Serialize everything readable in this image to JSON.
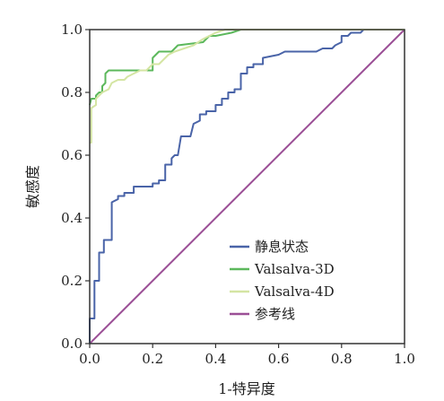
{
  "chart_data": {
    "type": "line",
    "xlabel": "1-特异度",
    "ylabel": "敏感度",
    "xlim": [
      0,
      1
    ],
    "ylim": [
      0,
      1
    ],
    "x_ticks": [
      "0.0",
      "0.2",
      "0.4",
      "0.6",
      "0.8",
      "1.0"
    ],
    "y_ticks": [
      "0.0",
      "0.2",
      "0.4",
      "0.6",
      "0.8",
      "1.0"
    ],
    "legend_position": "bottom-right",
    "grid": false,
    "series": [
      {
        "name": "静息状态",
        "color": "#4a64a8",
        "points": [
          [
            0,
            0
          ],
          [
            0,
            0.08
          ],
          [
            0.015,
            0.08
          ],
          [
            0.015,
            0.2
          ],
          [
            0.03,
            0.2
          ],
          [
            0.03,
            0.29
          ],
          [
            0.045,
            0.29
          ],
          [
            0.045,
            0.33
          ],
          [
            0.07,
            0.33
          ],
          [
            0.07,
            0.45
          ],
          [
            0.09,
            0.46
          ],
          [
            0.09,
            0.47
          ],
          [
            0.11,
            0.47
          ],
          [
            0.11,
            0.48
          ],
          [
            0.14,
            0.48
          ],
          [
            0.14,
            0.5
          ],
          [
            0.2,
            0.5
          ],
          [
            0.2,
            0.51
          ],
          [
            0.22,
            0.51
          ],
          [
            0.22,
            0.52
          ],
          [
            0.24,
            0.52
          ],
          [
            0.24,
            0.57
          ],
          [
            0.26,
            0.57
          ],
          [
            0.26,
            0.59
          ],
          [
            0.27,
            0.6
          ],
          [
            0.28,
            0.6
          ],
          [
            0.29,
            0.66
          ],
          [
            0.32,
            0.66
          ],
          [
            0.33,
            0.7
          ],
          [
            0.35,
            0.71
          ],
          [
            0.35,
            0.73
          ],
          [
            0.37,
            0.73
          ],
          [
            0.37,
            0.74
          ],
          [
            0.4,
            0.74
          ],
          [
            0.4,
            0.76
          ],
          [
            0.42,
            0.76
          ],
          [
            0.42,
            0.78
          ],
          [
            0.44,
            0.78
          ],
          [
            0.44,
            0.8
          ],
          [
            0.46,
            0.8
          ],
          [
            0.46,
            0.81
          ],
          [
            0.48,
            0.81
          ],
          [
            0.48,
            0.86
          ],
          [
            0.5,
            0.86
          ],
          [
            0.5,
            0.88
          ],
          [
            0.52,
            0.88
          ],
          [
            0.52,
            0.89
          ],
          [
            0.55,
            0.89
          ],
          [
            0.55,
            0.91
          ],
          [
            0.6,
            0.92
          ],
          [
            0.62,
            0.93
          ],
          [
            0.72,
            0.93
          ],
          [
            0.74,
            0.94
          ],
          [
            0.77,
            0.94
          ],
          [
            0.78,
            0.95
          ],
          [
            0.8,
            0.96
          ],
          [
            0.8,
            0.98
          ],
          [
            0.82,
            0.98
          ],
          [
            0.83,
            0.99
          ],
          [
            0.86,
            0.99
          ],
          [
            0.87,
            1.0
          ],
          [
            1,
            1
          ]
        ]
      },
      {
        "name": "Valsalva-3D",
        "color": "#5cb85c",
        "points": [
          [
            0,
            0.76
          ],
          [
            0.005,
            0.78
          ],
          [
            0.02,
            0.78
          ],
          [
            0.02,
            0.79
          ],
          [
            0.03,
            0.8
          ],
          [
            0.04,
            0.8
          ],
          [
            0.04,
            0.82
          ],
          [
            0.05,
            0.83
          ],
          [
            0.05,
            0.86
          ],
          [
            0.06,
            0.87
          ],
          [
            0.2,
            0.87
          ],
          [
            0.2,
            0.91
          ],
          [
            0.22,
            0.93
          ],
          [
            0.26,
            0.93
          ],
          [
            0.28,
            0.95
          ],
          [
            0.36,
            0.96
          ],
          [
            0.38,
            0.98
          ],
          [
            0.4,
            0.98
          ],
          [
            0.45,
            0.99
          ],
          [
            0.48,
            1.0
          ],
          [
            1,
            1
          ]
        ]
      },
      {
        "name": "Valsalva-4D",
        "color": "#d4e5a3",
        "points": [
          [
            0,
            0.64
          ],
          [
            0.005,
            0.64
          ],
          [
            0.005,
            0.75
          ],
          [
            0.02,
            0.76
          ],
          [
            0.02,
            0.78
          ],
          [
            0.04,
            0.8
          ],
          [
            0.06,
            0.81
          ],
          [
            0.07,
            0.83
          ],
          [
            0.09,
            0.84
          ],
          [
            0.11,
            0.84
          ],
          [
            0.12,
            0.85
          ],
          [
            0.14,
            0.86
          ],
          [
            0.16,
            0.87
          ],
          [
            0.18,
            0.87
          ],
          [
            0.2,
            0.89
          ],
          [
            0.22,
            0.89
          ],
          [
            0.25,
            0.92
          ],
          [
            0.27,
            0.93
          ],
          [
            0.3,
            0.94
          ],
          [
            0.33,
            0.95
          ],
          [
            0.36,
            0.97
          ],
          [
            0.4,
            0.99
          ],
          [
            0.43,
            1.0
          ],
          [
            1,
            1
          ]
        ]
      },
      {
        "name": "参考线",
        "color": "#9b4f96",
        "points": [
          [
            0,
            0
          ],
          [
            1,
            1
          ]
        ]
      }
    ]
  }
}
